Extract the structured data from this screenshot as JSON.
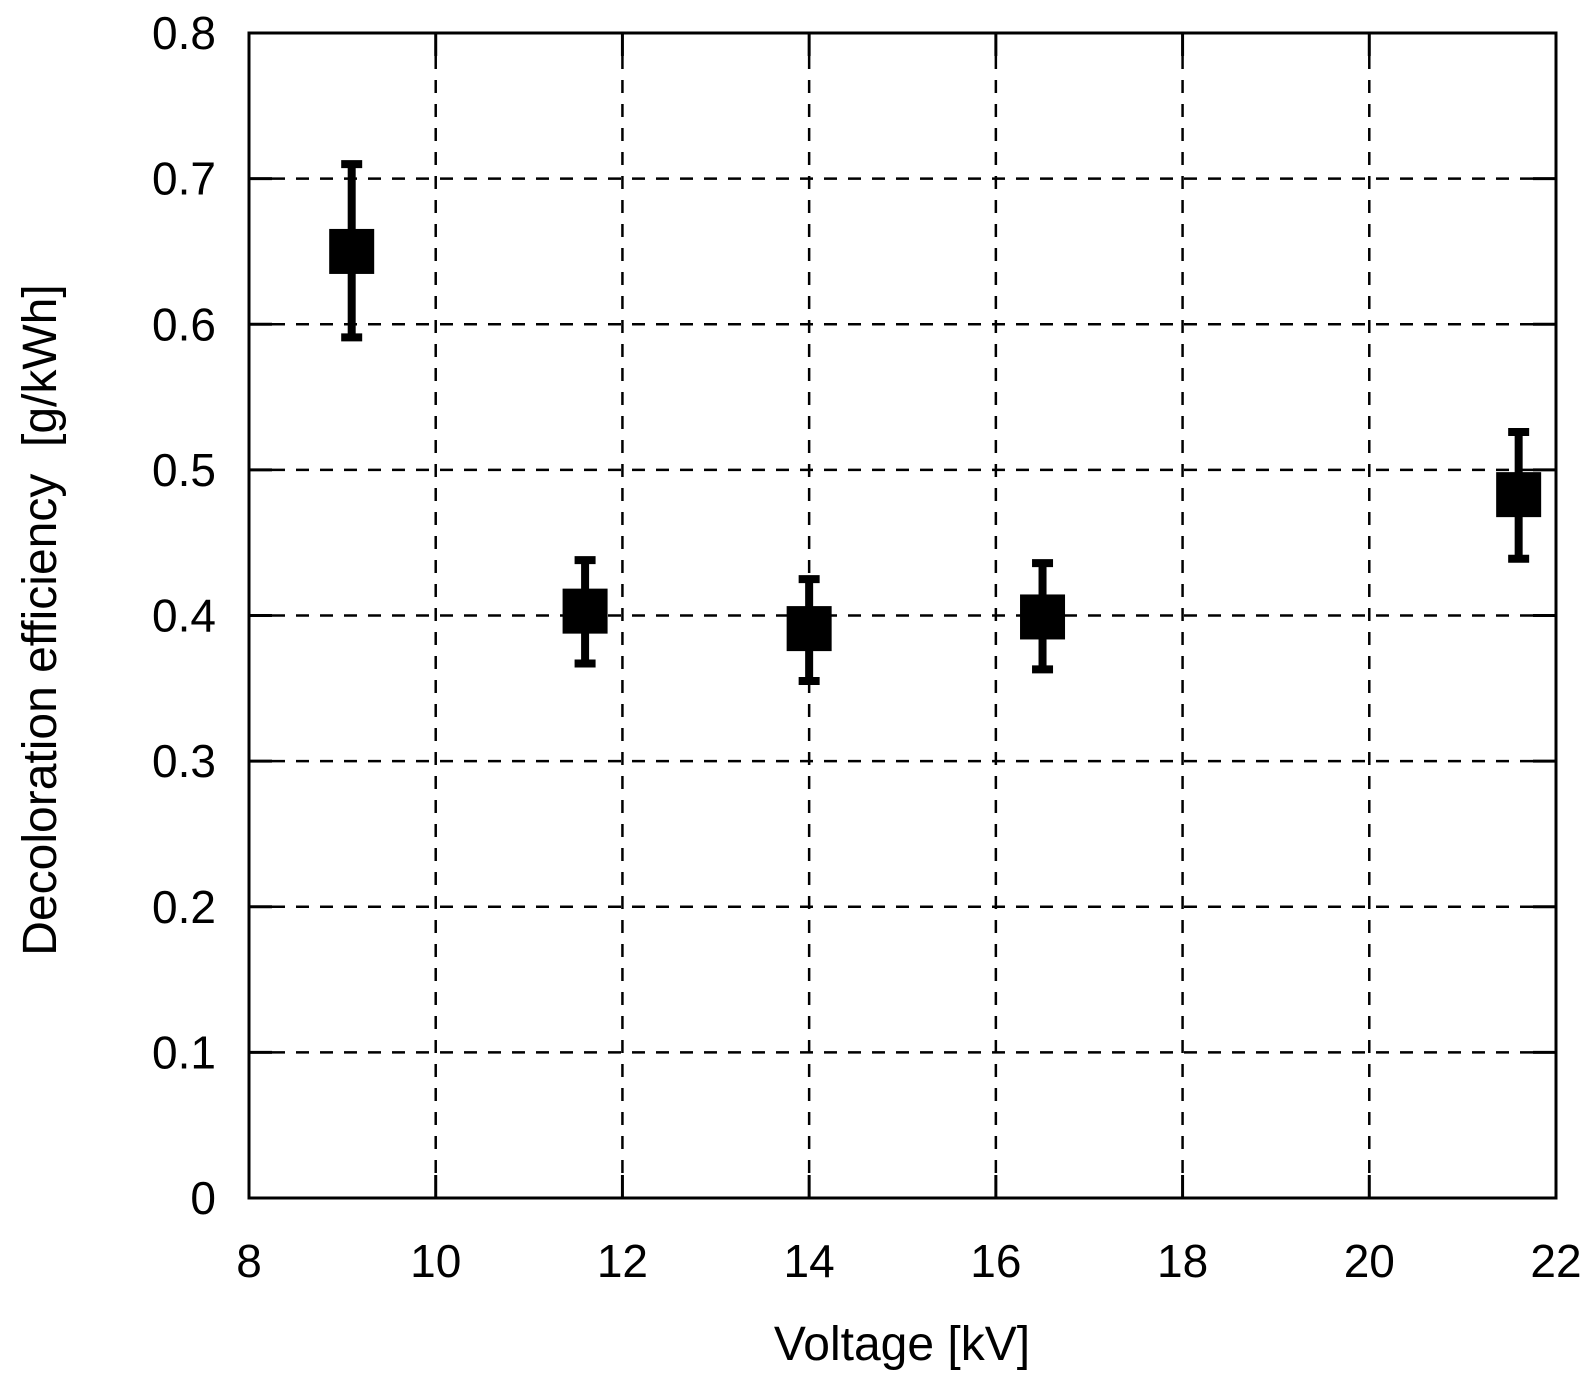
{
  "figure": {
    "background": "#ffffff",
    "foreground": "#000000",
    "marker_color": "#000000"
  },
  "chart_data": {
    "type": "scatter",
    "title": "",
    "xlabel": "Voltage [kV]",
    "ylabel": "Decoloration efficiency  [g/kWh]",
    "xlim": [
      8,
      22
    ],
    "ylim": [
      0,
      0.8
    ],
    "x_ticks": [
      8,
      10,
      12,
      14,
      16,
      18,
      20,
      22
    ],
    "x_tick_labels": [
      "8",
      "10",
      "12",
      "14",
      "16",
      "18",
      "20",
      "22"
    ],
    "y_ticks": [
      0,
      0.1,
      0.2,
      0.3,
      0.4,
      0.5,
      0.6,
      0.7,
      0.8
    ],
    "y_tick_labels": [
      "0",
      "0.1",
      "0.2",
      "0.3",
      "0.4",
      "0.5",
      "0.6",
      "0.7",
      "0.8"
    ],
    "grid": "dashed-major-both-axes",
    "legend": "none",
    "marker": "filled-black-square-with-error-bars",
    "series": [
      {
        "name": "Decoloration efficiency",
        "points": [
          {
            "x": 9.1,
            "y": 0.65,
            "y_err_upper": 0.71,
            "y_err_lower": 0.591
          },
          {
            "x": 11.6,
            "y": 0.403,
            "y_err_upper": 0.438,
            "y_err_lower": 0.367
          },
          {
            "x": 14.0,
            "y": 0.391,
            "y_err_upper": 0.425,
            "y_err_lower": 0.355
          },
          {
            "x": 16.5,
            "y": 0.399,
            "y_err_upper": 0.436,
            "y_err_lower": 0.363
          },
          {
            "x": 21.6,
            "y": 0.483,
            "y_err_upper": 0.526,
            "y_err_lower": 0.439
          }
        ]
      }
    ]
  }
}
